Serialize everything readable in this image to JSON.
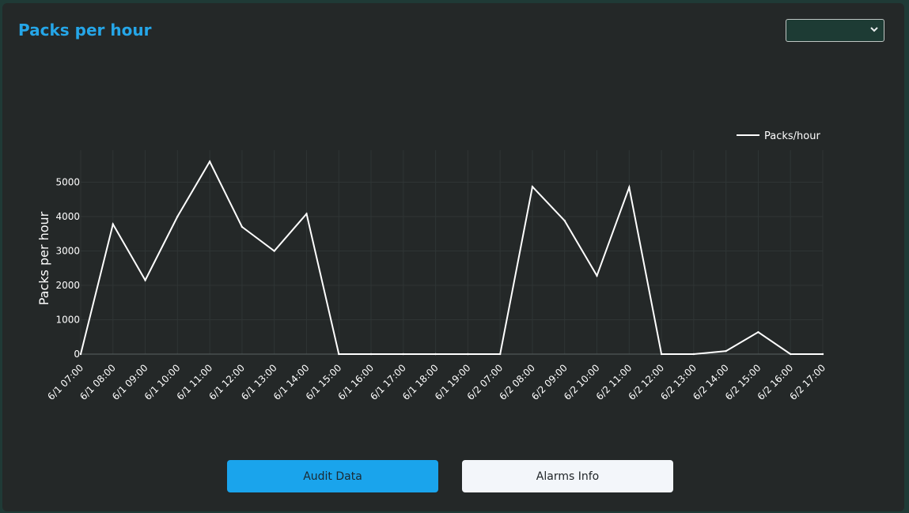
{
  "page": {
    "title": "Packs per hour",
    "period_select": {
      "selected": ""
    }
  },
  "buttons": {
    "audit_label": "Audit Data",
    "alarms_label": "Alarms Info"
  },
  "colors": {
    "title": "#25a6e8",
    "panel_bg": "#242828",
    "line": "#ffffff",
    "audit_button": "#1aa4ec",
    "alarms_button": "#f3f6fa"
  },
  "chart_data": {
    "type": "line",
    "title": "",
    "xlabel": "",
    "ylabel": "Packs per hour",
    "ylim": [
      0,
      6000
    ],
    "yticks": [
      0,
      1000,
      2000,
      3000,
      4000,
      5000
    ],
    "grid": true,
    "legend_position": "top-right",
    "categories": [
      "6/1 07:00",
      "6/1 08:00",
      "6/1 09:00",
      "6/1 10:00",
      "6/1 11:00",
      "6/1 12:00",
      "6/1 13:00",
      "6/1 14:00",
      "6/1 15:00",
      "6/1 16:00",
      "6/1 17:00",
      "6/1 18:00",
      "6/1 19:00",
      "6/2 07:00",
      "6/2 08:00",
      "6/2 09:00",
      "6/2 10:00",
      "6/2 11:00",
      "6/2 12:00",
      "6/2 13:00",
      "6/2 14:00",
      "6/2 15:00",
      "6/2 16:00",
      "6/2 17:00"
    ],
    "series": [
      {
        "name": "Packs/hour",
        "color": "#ffffff",
        "values": [
          0,
          3780,
          2150,
          4000,
          5600,
          3700,
          3000,
          4080,
          0,
          0,
          0,
          0,
          0,
          0,
          4870,
          3880,
          2280,
          4850,
          0,
          0,
          90,
          640,
          0,
          0
        ]
      }
    ]
  }
}
